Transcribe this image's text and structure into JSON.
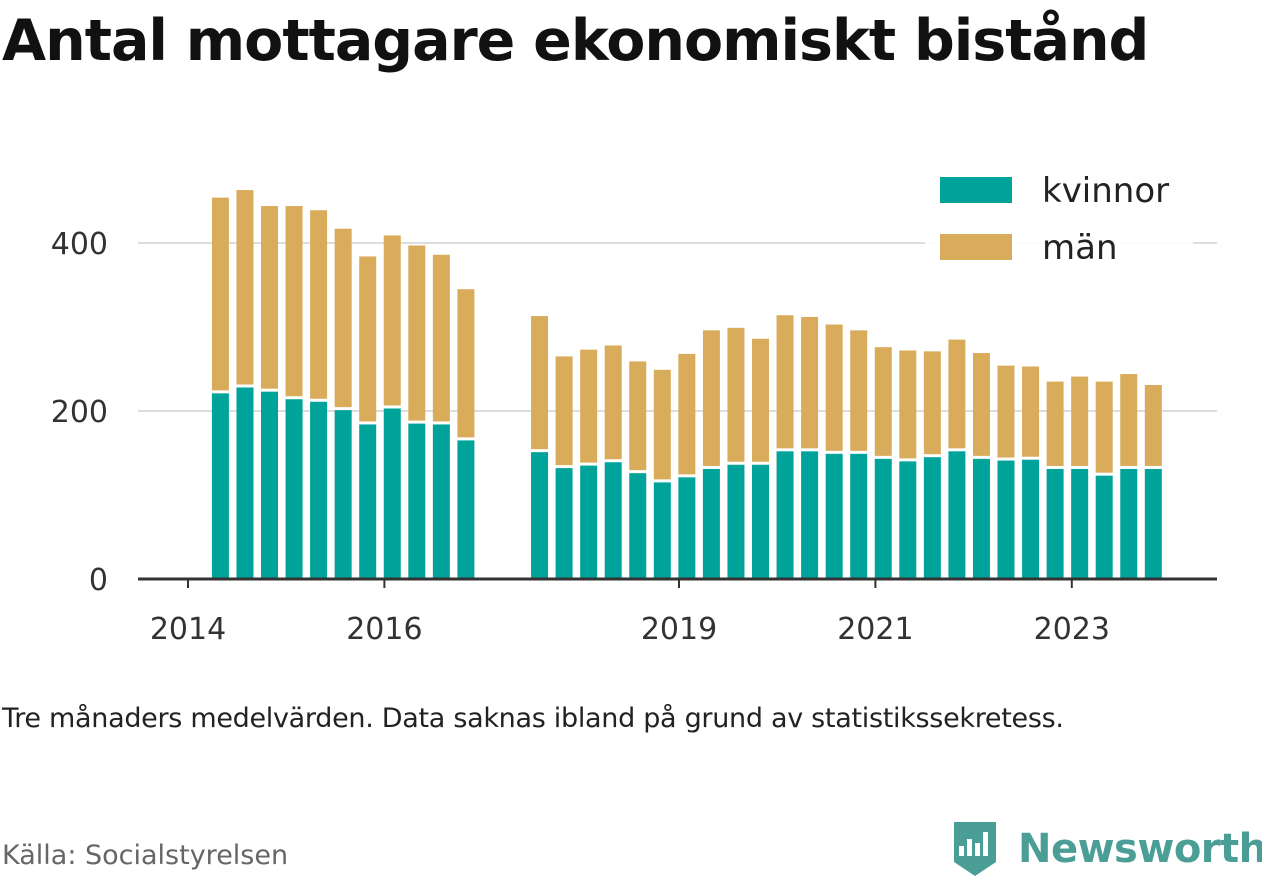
{
  "title": "Antal mottagare ekonomiskt bistånd",
  "note": "Tre månaders medelvärden. Data saknas ibland på grund av statistikssekretess.",
  "source": "Källa: Socialstyrelsen",
  "brand": "Newsworthy",
  "colors": {
    "kvinnor": "#00a39a",
    "man": "#d9ac5b",
    "axis": "#333333",
    "grid": "#dddddd",
    "brand": "#4a9e96"
  },
  "chart_data": {
    "type": "bar",
    "stacked": true,
    "ylim": [
      0,
      470
    ],
    "yticks": [
      0,
      200,
      400
    ],
    "xticks": [
      {
        "label": "2014",
        "at": 2014.0
      },
      {
        "label": "2016",
        "at": 2016.0
      },
      {
        "label": "2019",
        "at": 2019.0
      },
      {
        "label": "2021",
        "at": 2021.0
      },
      {
        "label": "2023",
        "at": 2023.0
      }
    ],
    "legend_position": "top-right",
    "x": [
      2014.33,
      2014.58,
      2014.83,
      2015.08,
      2015.33,
      2015.58,
      2015.83,
      2016.08,
      2016.33,
      2016.58,
      2016.83,
      2017.58,
      2017.83,
      2018.08,
      2018.33,
      2018.58,
      2018.83,
      2019.08,
      2019.33,
      2019.58,
      2019.83,
      2020.08,
      2020.33,
      2020.58,
      2020.83,
      2021.08,
      2021.33,
      2021.58,
      2021.83,
      2022.08,
      2022.33,
      2022.58,
      2022.83,
      2023.08,
      2023.33,
      2023.58,
      2023.83
    ],
    "series": [
      {
        "name": "kvinnor",
        "values": [
          221,
          228,
          223,
          214,
          211,
          201,
          184,
          203,
          185,
          184,
          165,
          151,
          132,
          135,
          139,
          126,
          115,
          121,
          131,
          136,
          136,
          152,
          152,
          149,
          149,
          143,
          140,
          145,
          152,
          143,
          141,
          142,
          131,
          131,
          123,
          131,
          131
        ]
      },
      {
        "name": "män",
        "values": [
          233,
          235,
          221,
          230,
          228,
          216,
          200,
          206,
          212,
          202,
          180,
          162,
          133,
          138,
          139,
          133,
          134,
          147,
          165,
          163,
          150,
          162,
          160,
          154,
          147,
          133,
          132,
          126,
          133,
          126,
          113,
          111,
          104,
          110,
          112,
          113,
          100
        ]
      }
    ]
  }
}
